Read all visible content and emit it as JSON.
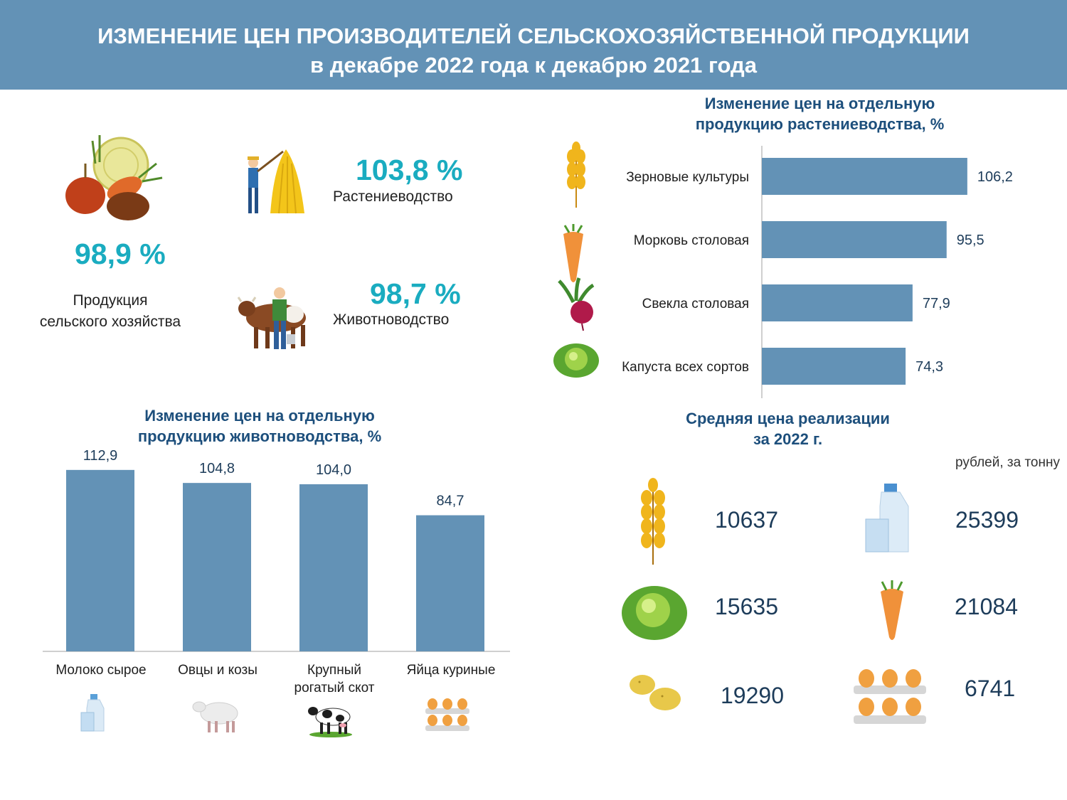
{
  "header": {
    "title_line1": "ИЗМЕНЕНИЕ ЦЕН ПРОИЗВОДИТЕЛЕЙ СЕЛЬСКОХОЗЯЙСТВЕННОЙ ПРОДУКЦИИ",
    "title_line2": "в декабре 2022 года к декабрю 2021 года",
    "color": "#6392b6"
  },
  "summary": {
    "total_pct": "98,9 %",
    "total_label_1": "Продукция",
    "total_label_2": "сельского хозяйства",
    "plant_pct": "103,8 %",
    "plant_label": "Растениеводство",
    "animal_pct": "98,7 %",
    "animal_label": "Животноводство",
    "accent_color": "#1aacc0"
  },
  "plant_chart": {
    "title_1": "Изменение цен на отдельную",
    "title_2": "продукцию растениеводства, %"
  },
  "animal_chart": {
    "title_1": "Изменение цен на отдельную",
    "title_2": "продукцию животноводства, %",
    "cat_labels": [
      "Молоко сырое",
      "Овцы и козы",
      "Крупный",
      "рогатый скот",
      "Яйца куриные"
    ]
  },
  "prices": {
    "title_1": "Средняя цена реализации",
    "title_2": "за 2022 г.",
    "unit": "рублей, за тонну",
    "grain": "10637",
    "milk": "25399",
    "cabbage": "15635",
    "carrot": "21084",
    "potato": "19290",
    "eggs": "6741"
  },
  "chart_data": [
    {
      "type": "bar",
      "orientation": "horizontal",
      "title": "Изменение цен на отдельную продукцию растениеводства, %",
      "categories": [
        "Зерновые культуры",
        "Морковь столовая",
        "Свекла столовая",
        "Капуста всех сортов"
      ],
      "values": [
        106.2,
        95.5,
        77.9,
        74.3
      ],
      "value_labels": [
        "106,2",
        "95,5",
        "77,9",
        "74,3"
      ],
      "icons": [
        "wheat-icon",
        "carrot-icon",
        "beet-icon",
        "cabbage-icon"
      ],
      "bar_color": "#6392b6",
      "grid": false
    },
    {
      "type": "bar",
      "orientation": "vertical",
      "title": "Изменение цен на отдельную продукцию животноводства, %",
      "categories": [
        "Молоко сырое",
        "Овцы и козы",
        "Крупный рогатый скот",
        "Яйца куриные"
      ],
      "values": [
        112.9,
        104.8,
        104.0,
        84.7
      ],
      "value_labels": [
        "112,9",
        "104,8",
        "104,0",
        "84,7"
      ],
      "icons": [
        "milk-icon",
        "sheep-icon",
        "cow-icon",
        "eggs-icon"
      ],
      "bar_color": "#6392b6",
      "grid": false
    }
  ]
}
